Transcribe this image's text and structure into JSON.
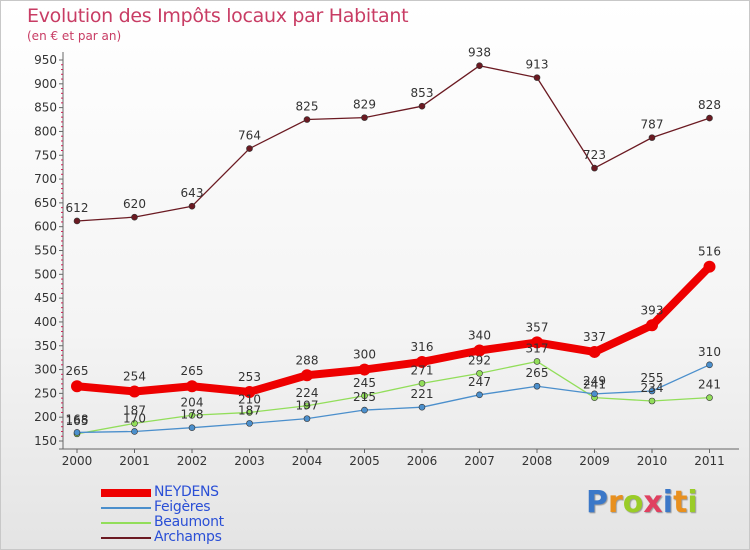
{
  "chart_data": {
    "type": "line",
    "title": "Evolution des Impôts locaux par Habitant",
    "subtitle": "(en € et par an)",
    "x": [
      "2000",
      "2001",
      "2002",
      "2003",
      "2004",
      "2005",
      "2006",
      "2007",
      "2008",
      "2009",
      "2010",
      "2011"
    ],
    "yticks": [
      150,
      200,
      250,
      300,
      350,
      400,
      450,
      500,
      550,
      600,
      650,
      700,
      750,
      800,
      850,
      900,
      950
    ],
    "ylim": [
      150,
      950
    ],
    "grid": false,
    "legend_position": "bottom-left",
    "series": [
      {
        "name": "Archamps",
        "color": "#6b1a22",
        "values": [
          612,
          620,
          643,
          764,
          825,
          829,
          853,
          938,
          913,
          723,
          787,
          828
        ]
      },
      {
        "name": "Beaumont",
        "color": "#92de5a",
        "values": [
          165,
          187,
          204,
          210,
          224,
          245,
          271,
          292,
          317,
          241,
          234,
          241
        ]
      },
      {
        "name": "Feigères",
        "color": "#4b8fcc",
        "values": [
          168,
          170,
          178,
          187,
          197,
          215,
          221,
          247,
          265,
          249,
          255,
          310
        ]
      },
      {
        "name": "NEYDENS",
        "color": "#ee0000",
        "values": [
          265,
          254,
          265,
          253,
          288,
          300,
          316,
          340,
          357,
          337,
          393,
          516
        ]
      }
    ]
  },
  "legend": {
    "items": [
      {
        "label": "NEYDENS",
        "color": "#ee0000"
      },
      {
        "label": "Feigères",
        "color": "#4b8fcc"
      },
      {
        "label": "Beaumont",
        "color": "#92de5a"
      },
      {
        "label": "Archamps",
        "color": "#6b1a22"
      }
    ]
  },
  "logo": {
    "letters": [
      {
        "ch": "P",
        "color": "#3b78c8"
      },
      {
        "ch": "r",
        "color": "#e8901e"
      },
      {
        "ch": "o",
        "color": "#9acc28"
      },
      {
        "ch": "x",
        "color": "#e04060"
      },
      {
        "ch": "i",
        "color": "#3b78c8"
      },
      {
        "ch": "t",
        "color": "#e8901e"
      },
      {
        "ch": "i",
        "color": "#9acc28"
      }
    ]
  }
}
